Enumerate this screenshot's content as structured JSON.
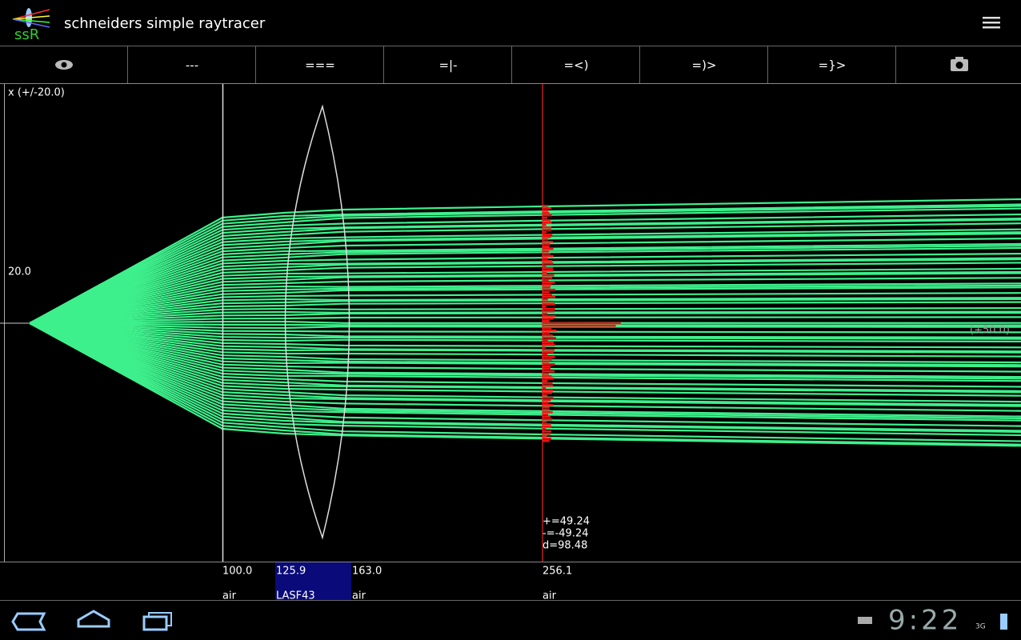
{
  "app_bar": {
    "logo": "ssR",
    "title": "schneiders simple raytracer"
  },
  "toolbar": {
    "buttons": [
      "---",
      "===",
      "=|-",
      "=<)",
      "=)>",
      "=}>"
    ]
  },
  "plot": {
    "axis_label": "x (+/-20.0)",
    "tick_label": "20.0",
    "right_label": "(+50.0)",
    "results": [
      "+=49.24",
      "-=-49.24",
      "d=98.48"
    ]
  },
  "elements": [
    {
      "position": "100.0",
      "medium": "air"
    },
    {
      "position": "125.9",
      "medium": "LASF43"
    },
    {
      "position": "163.0",
      "medium": "air"
    },
    {
      "position": "256.1",
      "medium": "air"
    }
  ],
  "status_bar": {
    "time": "9:22",
    "network": "3G"
  }
}
